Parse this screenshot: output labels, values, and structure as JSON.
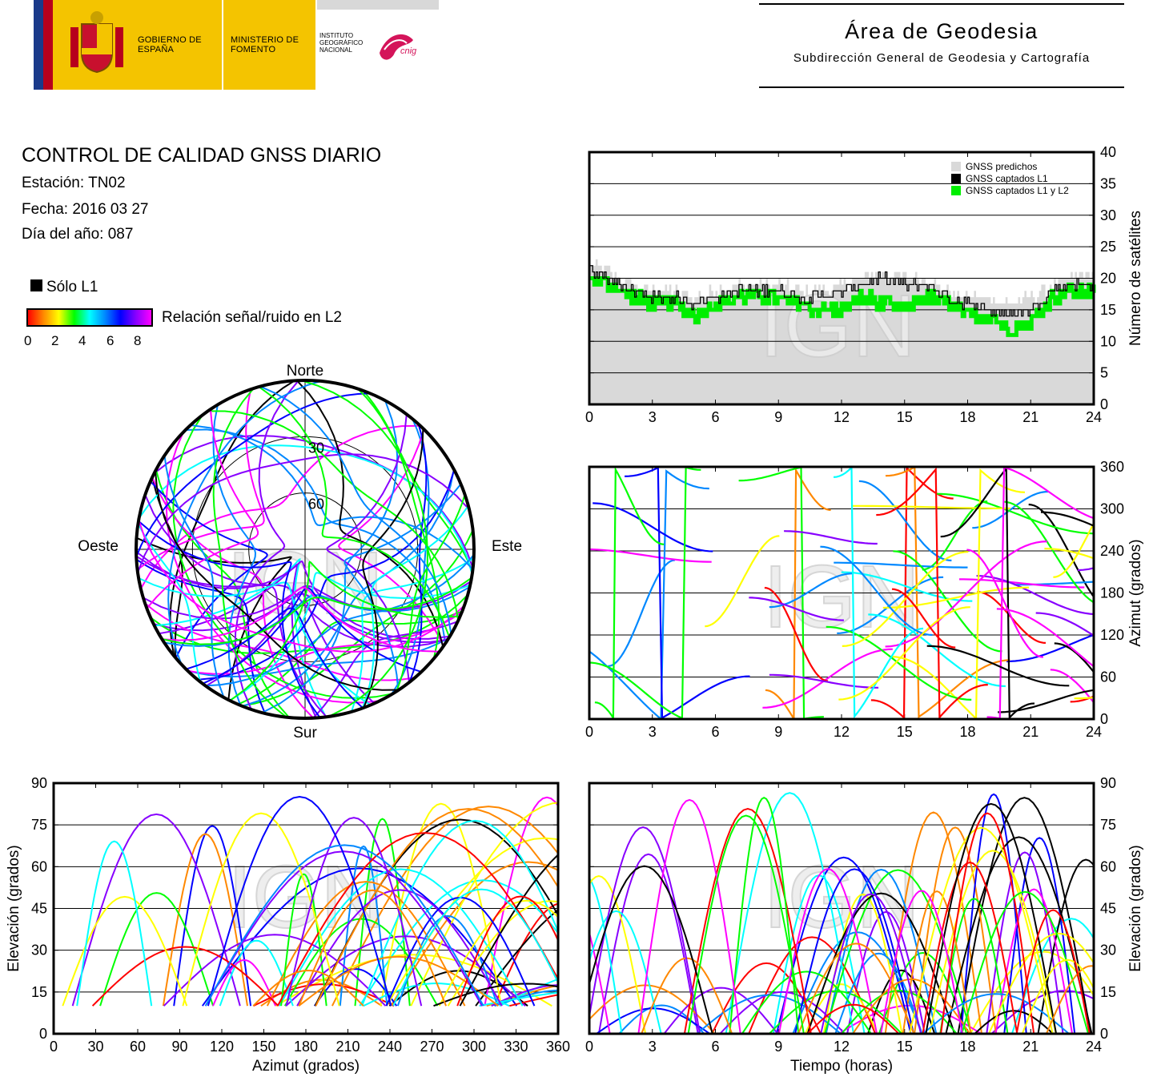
{
  "header": {
    "gobierno": "GOBIERNO DE ESPAÑA",
    "ministerio": "MINISTERIO DE FOMENTO",
    "instituto": "INSTITUTO GEOGRÁFICO NACIONAL",
    "cnig": "cnig",
    "area_title": "Área de Geodesia",
    "area_subtitle": "Subdirección General de Geodesia y Cartografía"
  },
  "info": {
    "title": "CONTROL DE CALIDAD GNSS DIARIO",
    "station": "Estación: TN02",
    "date": "Fecha: 2016 03 27",
    "doy": "Día del año: 087"
  },
  "legend": {
    "l1_only": "Sólo L1",
    "snr_label": "Relación señal/ruido en L2",
    "snr_ticks": [
      "0",
      "2",
      "4",
      "6",
      "8"
    ],
    "snr_colors": [
      "#ff0000",
      "#ff8800",
      "#ffff00",
      "#00ff00",
      "#00ffff",
      "#0088ff",
      "#0000ff",
      "#8800ff",
      "#ff00ff"
    ]
  },
  "watermark": "IGN",
  "colors": {
    "predicted": "#d9d9d9",
    "l1": "#000000",
    "l1l2": "#00ee00"
  },
  "chart_data": [
    {
      "id": "satellites-count",
      "type": "area",
      "xlabel": "",
      "ylabel": "Número de satélites",
      "xlim": [
        0,
        24
      ],
      "ylim": [
        0,
        40
      ],
      "xticks": [
        "0",
        "3",
        "6",
        "9",
        "12",
        "15",
        "18",
        "21",
        "24"
      ],
      "yticks": [
        "0",
        "5",
        "10",
        "15",
        "20",
        "25",
        "30",
        "35",
        "40"
      ],
      "grid": "y",
      "legend_position": "top-right",
      "series": [
        {
          "name": "GNSS predichos",
          "x": [
            0,
            1,
            2,
            3,
            4,
            5,
            6,
            7,
            8,
            9,
            10,
            11,
            12,
            13,
            14,
            15,
            16,
            17,
            18,
            19,
            20,
            21,
            22,
            23,
            24
          ],
          "values": [
            22,
            21,
            19,
            18,
            18,
            17,
            18,
            19,
            19,
            19,
            18,
            18,
            19,
            20,
            21,
            20,
            20,
            18,
            17,
            17,
            16,
            17,
            19,
            20,
            21
          ]
        },
        {
          "name": "GNSS captados L1",
          "x": [
            0,
            1,
            2,
            3,
            4,
            5,
            6,
            7,
            8,
            9,
            10,
            11,
            12,
            13,
            14,
            15,
            16,
            17,
            18,
            19,
            20,
            21,
            22,
            23,
            24
          ],
          "values": [
            21,
            20,
            18,
            17,
            17,
            16,
            17,
            18,
            18,
            18,
            17,
            17,
            18,
            19,
            20,
            19,
            19,
            17,
            16,
            15,
            14,
            15,
            18,
            19,
            19
          ]
        },
        {
          "name": "GNSS captados L1 y L2",
          "x": [
            0,
            1,
            2,
            3,
            4,
            5,
            6,
            7,
            8,
            9,
            10,
            11,
            12,
            13,
            14,
            15,
            16,
            17,
            18,
            19,
            20,
            21,
            22,
            23,
            24
          ],
          "values": [
            20,
            19,
            17,
            16,
            16,
            14,
            16,
            17,
            17,
            17,
            16,
            15,
            15,
            17,
            16,
            15,
            17,
            16,
            14,
            14,
            12,
            13,
            17,
            18,
            18
          ]
        }
      ]
    },
    {
      "id": "azimuth-time",
      "type": "scatter",
      "xlabel": "",
      "ylabel": "Azimut (grados)",
      "xlim": [
        0,
        24
      ],
      "ylim": [
        0,
        360
      ],
      "xticks": [
        "0",
        "3",
        "6",
        "9",
        "12",
        "15",
        "18",
        "21",
        "24"
      ],
      "yticks": [
        "0",
        "60",
        "120",
        "180",
        "240",
        "300",
        "360"
      ],
      "grid": "y"
    },
    {
      "id": "skyplot",
      "type": "scatter",
      "labels": {
        "north": "Norte",
        "south": "Sur",
        "east": "Este",
        "west": "Oeste"
      },
      "rings": [
        "30",
        "60"
      ]
    },
    {
      "id": "elevation-azimuth",
      "type": "scatter",
      "xlabel": "Azimut (grados)",
      "ylabel": "Elevación (grados)",
      "xlim": [
        0,
        360
      ],
      "ylim": [
        0,
        90
      ],
      "xticks": [
        "0",
        "30",
        "60",
        "90",
        "120",
        "150",
        "180",
        "210",
        "240",
        "270",
        "300",
        "330",
        "360"
      ],
      "yticks": [
        "0",
        "15",
        "30",
        "45",
        "60",
        "75",
        "90"
      ],
      "grid": "y"
    },
    {
      "id": "elevation-time",
      "type": "scatter",
      "xlabel": "Tiempo (horas)",
      "ylabel": "Elevación (grados)",
      "xlim": [
        0,
        24
      ],
      "ylim": [
        0,
        90
      ],
      "xticks": [
        "0",
        "3",
        "6",
        "9",
        "12",
        "15",
        "18",
        "21",
        "24"
      ],
      "yticks": [
        "0",
        "15",
        "30",
        "45",
        "60",
        "75",
        "90"
      ],
      "grid": "y"
    }
  ]
}
